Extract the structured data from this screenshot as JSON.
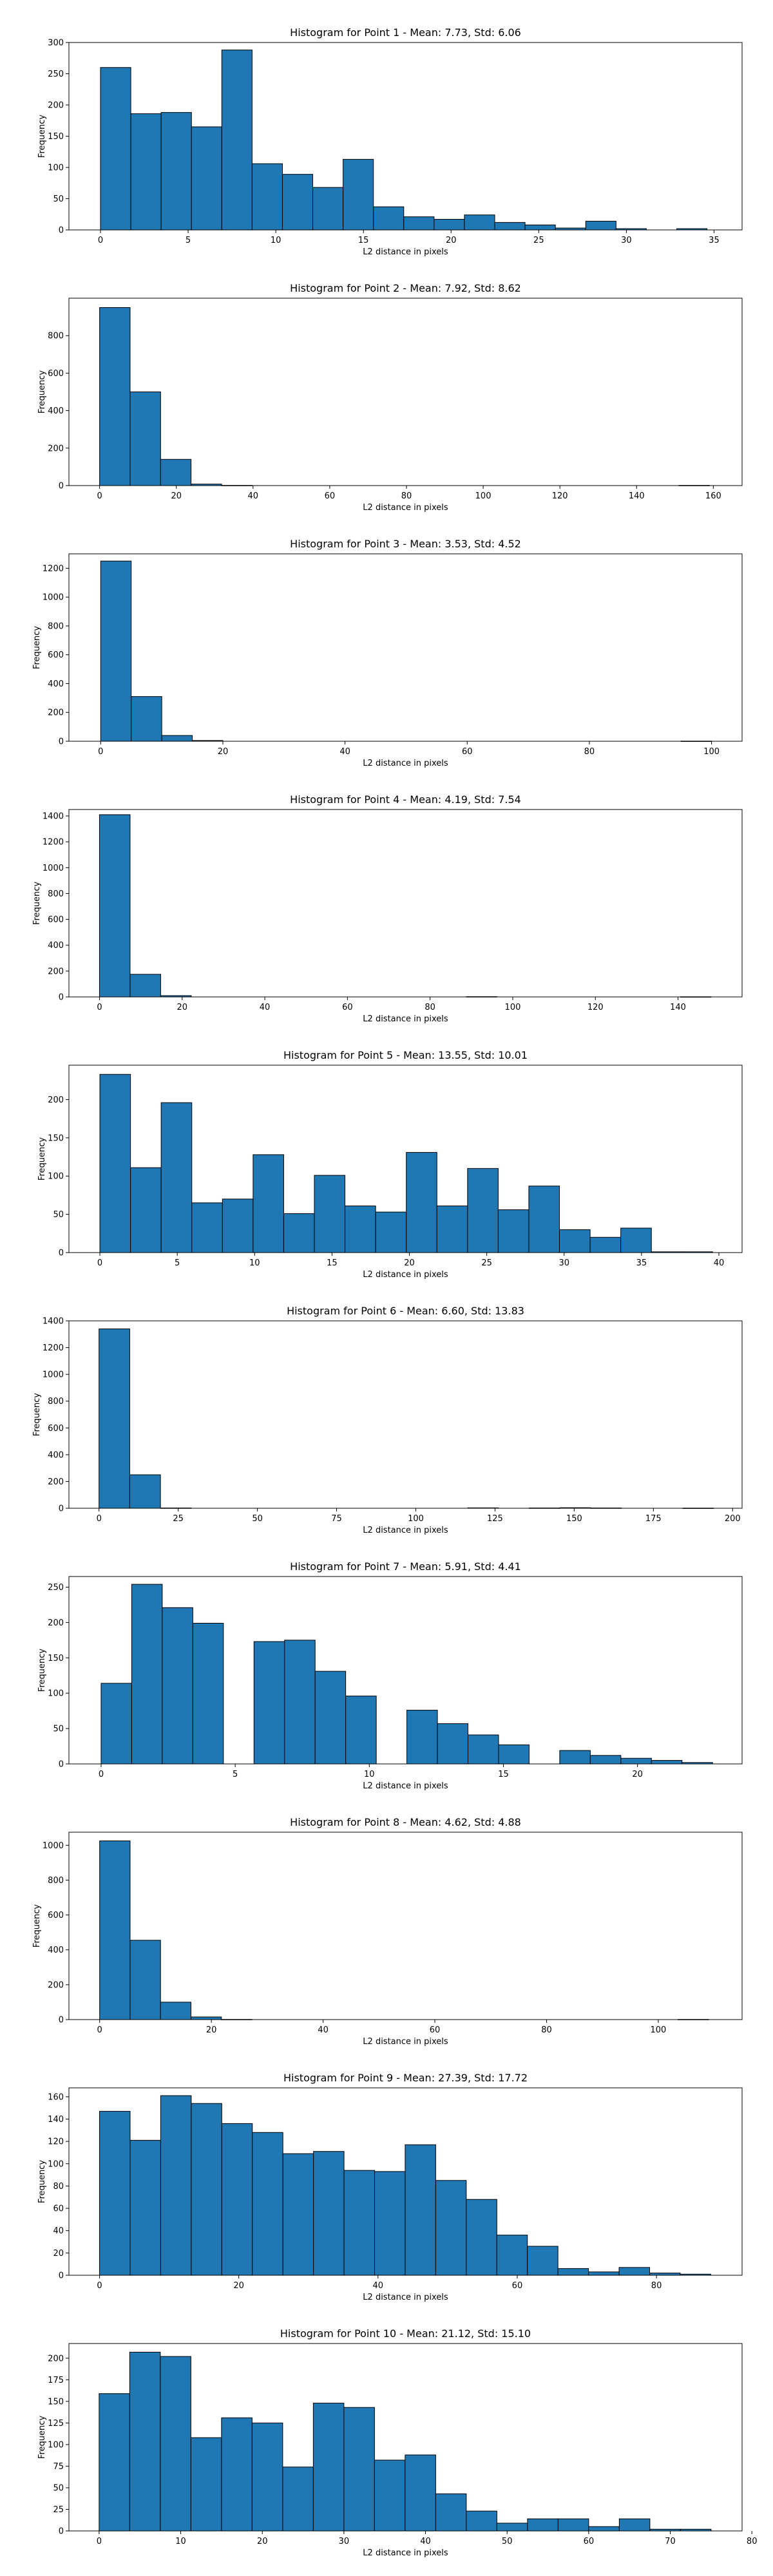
{
  "chart_data": [
    {
      "type": "bar",
      "title": "Histogram for Point 1 - Mean: 7.73, Std: 6.06",
      "xlabel": "L2 distance in pixels",
      "ylabel": "Frequency",
      "xlim": [
        -1.8,
        36.6
      ],
      "ylim": [
        0,
        300
      ],
      "xticks": [
        0,
        5,
        10,
        15,
        20,
        25,
        30,
        35
      ],
      "yticks": [
        0,
        50,
        100,
        150,
        200,
        250,
        300
      ],
      "bin_edges": [
        0.0,
        1.73,
        3.46,
        5.19,
        6.92,
        8.65,
        10.38,
        12.11,
        13.84,
        15.57,
        17.3,
        19.03,
        20.76,
        22.49,
        24.22,
        25.95,
        27.68,
        29.41,
        31.14,
        32.87,
        34.6
      ],
      "values": [
        260,
        186,
        188,
        165,
        288,
        106,
        89,
        68,
        113,
        37,
        21,
        17,
        24,
        12,
        8,
        3,
        14,
        2,
        0,
        2
      ],
      "color": "#1f77b4"
    },
    {
      "type": "bar",
      "title": "Histogram for Point 2 - Mean: 7.92, Std: 8.62",
      "xlabel": "L2 distance in pixels",
      "ylabel": "Frequency",
      "xlim": [
        -8.0,
        167.5
      ],
      "ylim": [
        0,
        1000
      ],
      "xticks": [
        0,
        20,
        40,
        60,
        80,
        100,
        120,
        140,
        160
      ],
      "yticks": [
        0,
        200,
        400,
        600,
        800
      ],
      "bin_edges": [
        0.0,
        7.95,
        15.9,
        23.85,
        31.8,
        39.75,
        47.7,
        55.65,
        63.6,
        71.55,
        79.5,
        87.45,
        95.4,
        103.35,
        111.3,
        119.25,
        127.2,
        135.15,
        143.1,
        151.05,
        159.0
      ],
      "values": [
        950,
        500,
        140,
        8,
        1,
        0,
        0,
        0,
        0,
        0,
        0,
        0,
        0,
        0,
        0,
        0,
        0,
        0,
        0,
        1
      ],
      "color": "#1f77b4"
    },
    {
      "type": "bar",
      "title": "Histogram for Point 3 - Mean: 3.53, Std: 4.52",
      "xlabel": "L2 distance in pixels",
      "ylabel": "Frequency",
      "xlim": [
        -5.2,
        105.0
      ],
      "ylim": [
        0,
        1300
      ],
      "xticks": [
        0,
        20,
        40,
        60,
        80,
        100
      ],
      "yticks": [
        0,
        200,
        400,
        600,
        800,
        1000,
        1200
      ],
      "bin_edges": [
        0.0,
        5.0,
        10.0,
        15.0,
        20.0,
        25.0,
        30.0,
        35.0,
        40.0,
        45.0,
        50.0,
        55.0,
        60.0,
        65.0,
        70.0,
        75.0,
        80.0,
        85.0,
        90.0,
        95.0,
        100.0
      ],
      "values": [
        1250,
        310,
        40,
        5,
        0,
        0,
        0,
        0,
        0,
        0,
        0,
        0,
        0,
        0,
        0,
        0,
        0,
        0,
        0,
        1
      ],
      "color": "#1f77b4"
    },
    {
      "type": "bar",
      "title": "Histogram for Point 4 - Mean: 4.19, Std: 7.54",
      "xlabel": "L2 distance in pixels",
      "ylabel": "Frequency",
      "xlim": [
        -7.4,
        155.5
      ],
      "ylim": [
        0,
        1450
      ],
      "xticks": [
        0,
        20,
        40,
        60,
        80,
        100,
        120,
        140
      ],
      "yticks": [
        0,
        200,
        400,
        600,
        800,
        1000,
        1200,
        1400
      ],
      "bin_edges": [
        0.0,
        7.4,
        14.8,
        22.2,
        29.6,
        37.0,
        44.4,
        51.8,
        59.2,
        66.6,
        74.0,
        81.4,
        88.8,
        96.2,
        103.6,
        111.0,
        118.4,
        125.8,
        133.2,
        140.6,
        148.0
      ],
      "values": [
        1410,
        175,
        10,
        0,
        0,
        0,
        0,
        0,
        0,
        0,
        0,
        0,
        2,
        0,
        0,
        0,
        0,
        0,
        0,
        1
      ],
      "color": "#1f77b4"
    },
    {
      "type": "bar",
      "title": "Histogram for Point 5 - Mean: 13.55, Std: 10.01",
      "xlabel": "L2 distance in pixels",
      "ylabel": "Frequency",
      "xlim": [
        -2.0,
        41.5
      ],
      "ylim": [
        0,
        245
      ],
      "xticks": [
        0,
        5,
        10,
        15,
        20,
        25,
        30,
        35,
        40
      ],
      "yticks": [
        0,
        50,
        100,
        150,
        200
      ],
      "bin_edges": [
        0.0,
        1.98,
        3.96,
        5.94,
        7.92,
        9.9,
        11.88,
        13.86,
        15.84,
        17.82,
        19.8,
        21.78,
        23.76,
        25.74,
        27.72,
        29.7,
        31.68,
        33.66,
        35.64,
        37.62,
        39.6
      ],
      "values": [
        233,
        111,
        196,
        65,
        70,
        128,
        51,
        101,
        61,
        53,
        131,
        61,
        110,
        56,
        87,
        30,
        20,
        32,
        1,
        1
      ],
      "color": "#1f77b4"
    },
    {
      "type": "bar",
      "title": "Histogram for Point 6 - Mean: 6.60, Std: 13.83",
      "xlabel": "L2 distance in pixels",
      "ylabel": "Frequency",
      "xlim": [
        -9.5,
        203.0
      ],
      "ylim": [
        0,
        1400
      ],
      "xticks": [
        0,
        25,
        50,
        75,
        100,
        125,
        150,
        175,
        200
      ],
      "yticks": [
        0,
        200,
        400,
        600,
        800,
        1000,
        1200,
        1400
      ],
      "bin_edges": [
        0.0,
        9.7,
        19.4,
        29.1,
        38.8,
        48.5,
        58.2,
        67.9,
        77.6,
        87.3,
        97.0,
        106.7,
        116.4,
        126.1,
        135.8,
        145.5,
        155.2,
        164.9,
        174.6,
        184.3,
        194.0
      ],
      "values": [
        1340,
        250,
        2,
        0,
        0,
        0,
        0,
        0,
        0,
        0,
        0,
        0,
        3,
        0,
        2,
        4,
        2,
        0,
        0,
        1
      ],
      "color": "#1f77b4"
    },
    {
      "type": "bar",
      "title": "Histogram for Point 7 - Mean: 5.91, Std: 4.41",
      "xlabel": "L2 distance in pixels",
      "ylabel": "Frequency",
      "xlim": [
        -1.2,
        23.9
      ],
      "ylim": [
        0,
        265
      ],
      "xticks": [
        0,
        5,
        10,
        15,
        20
      ],
      "yticks": [
        0,
        50,
        100,
        150,
        200,
        250
      ],
      "bin_edges": [
        0.0,
        1.14,
        2.28,
        3.42,
        4.56,
        5.7,
        6.84,
        7.98,
        9.12,
        10.26,
        11.4,
        12.54,
        13.68,
        14.82,
        15.96,
        17.1,
        18.24,
        19.38,
        20.52,
        21.66,
        22.8
      ],
      "values": [
        114,
        254,
        221,
        199,
        0,
        173,
        175,
        131,
        96,
        0,
        76,
        57,
        41,
        27,
        0,
        19,
        12,
        8,
        5,
        2
      ],
      "color": "#1f77b4"
    },
    {
      "type": "bar",
      "title": "Histogram for Point 8 - Mean: 4.62, Std: 4.88",
      "xlabel": "L2 distance in pixels",
      "ylabel": "Frequency",
      "xlim": [
        -5.5,
        115.0
      ],
      "ylim": [
        0,
        1075
      ],
      "xticks": [
        0,
        20,
        40,
        60,
        80,
        100
      ],
      "yticks": [
        0,
        200,
        400,
        600,
        800,
        1000
      ],
      "bin_edges": [
        0.0,
        5.45,
        10.9,
        16.35,
        21.8,
        27.25,
        32.7,
        38.15,
        43.6,
        49.05,
        54.5,
        59.95,
        65.4,
        70.85,
        76.3,
        81.75,
        87.2,
        92.65,
        98.1,
        103.55,
        109.0
      ],
      "values": [
        1025,
        455,
        100,
        15,
        1,
        0,
        0,
        0,
        0,
        0,
        0,
        0,
        0,
        0,
        0,
        0,
        0,
        0,
        0,
        1
      ],
      "color": "#1f77b4"
    },
    {
      "type": "bar",
      "title": "Histogram for Point 9 - Mean: 27.39, Std: 17.72",
      "xlabel": "L2 distance in pixels",
      "ylabel": "Frequency",
      "xlim": [
        -4.4,
        92.3
      ],
      "ylim": [
        0,
        168
      ],
      "xticks": [
        0,
        20,
        40,
        60,
        80
      ],
      "yticks": [
        0,
        20,
        40,
        60,
        80,
        100,
        120,
        140,
        160
      ],
      "bin_edges": [
        0.0,
        4.39,
        8.78,
        13.17,
        17.56,
        21.95,
        26.34,
        30.73,
        35.12,
        39.51,
        43.9,
        48.29,
        52.68,
        57.07,
        61.46,
        65.85,
        70.24,
        74.63,
        79.02,
        83.41,
        87.8
      ],
      "values": [
        147,
        121,
        161,
        154,
        136,
        128,
        109,
        111,
        94,
        93,
        117,
        85,
        68,
        36,
        26,
        6,
        3,
        7,
        2,
        1
      ],
      "color": "#1f77b4"
    },
    {
      "type": "bar",
      "title": "Histogram for Point 10 - Mean: 21.12, Std: 15.10",
      "xlabel": "L2 distance in pixels",
      "ylabel": "Frequency",
      "xlim": [
        -3.7,
        78.8
      ],
      "ylim": [
        0,
        217
      ],
      "xticks": [
        0,
        10,
        20,
        30,
        40,
        50,
        60,
        70,
        80
      ],
      "yticks": [
        0,
        25,
        50,
        75,
        100,
        125,
        150,
        175,
        200
      ],
      "bin_edges": [
        0.0,
        3.75,
        7.5,
        11.25,
        15.0,
        18.75,
        22.5,
        26.25,
        30.0,
        33.75,
        37.5,
        41.25,
        45.0,
        48.75,
        52.5,
        56.25,
        60.0,
        63.75,
        67.5,
        71.25,
        75.0
      ],
      "values": [
        159,
        207,
        202,
        108,
        131,
        125,
        74,
        148,
        143,
        82,
        88,
        43,
        23,
        9,
        14,
        14,
        5,
        14,
        2,
        2
      ],
      "color": "#1f77b4"
    }
  ]
}
